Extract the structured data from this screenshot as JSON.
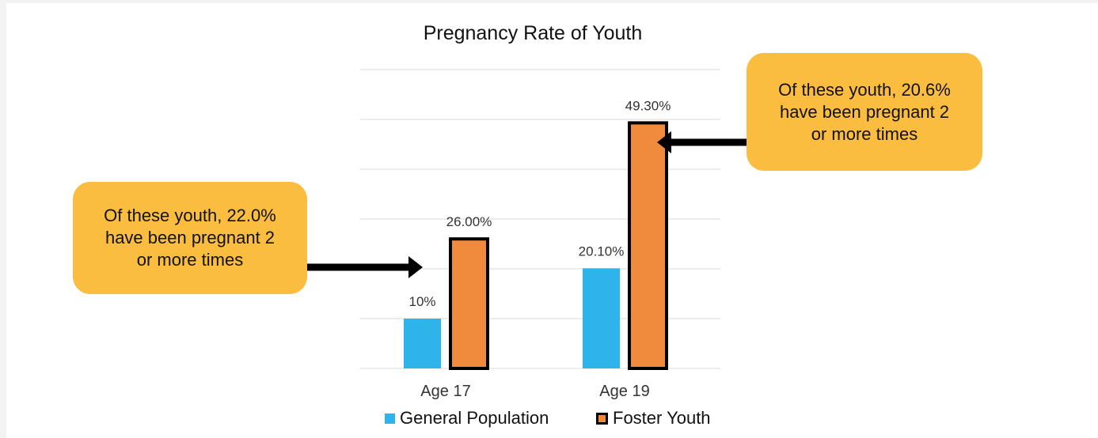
{
  "chart_data": {
    "type": "bar",
    "title": "Pregnancy Rate of Youth",
    "categories": [
      "Age 17",
      "Age 19"
    ],
    "series": [
      {
        "name": "General Population",
        "values": [
          10,
          20.1
        ],
        "labels": [
          "10%",
          "20.10%"
        ],
        "color": "#2eb4ea"
      },
      {
        "name": "Foster Youth",
        "values": [
          26,
          49.3
        ],
        "labels": [
          "26.00%",
          "49.30%"
        ],
        "color": "#f08a3c"
      }
    ],
    "ylim": [
      0,
      60
    ],
    "grid": true,
    "legend": "bottom"
  },
  "callouts": {
    "left": [
      "Of these youth, 22.0%",
      "have been pregnant 2",
      "or more times"
    ],
    "right": [
      "Of these youth, 20.6%",
      "have been pregnant 2",
      "or more times"
    ],
    "color": "#fbbd3f"
  }
}
